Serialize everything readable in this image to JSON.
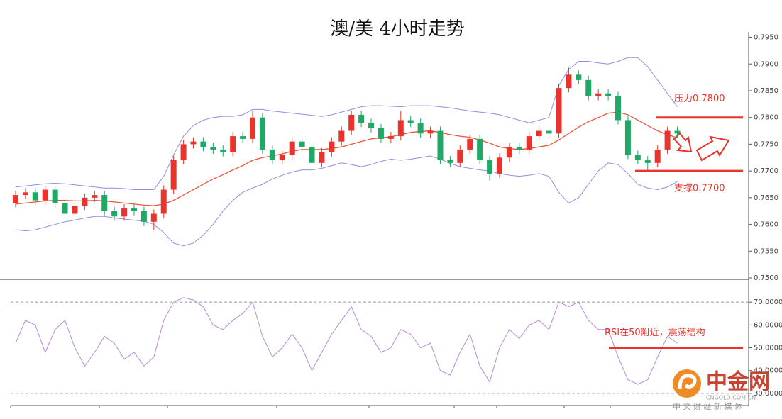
{
  "chart_data": [
    {
      "type": "candlestick",
      "title": "澳/美 4小时走势",
      "up_color": "#e8342c",
      "down_color": "#1fa866",
      "open": [
        0.764,
        0.7655,
        0.766,
        0.7645,
        0.7665,
        0.764,
        0.762,
        0.7635,
        0.765,
        0.7655,
        0.7625,
        0.7615,
        0.763,
        0.7625,
        0.7605,
        0.762,
        0.7665,
        0.772,
        0.775,
        0.7755,
        0.7745,
        0.774,
        0.7735,
        0.7765,
        0.776,
        0.78,
        0.774,
        0.772,
        0.773,
        0.7755,
        0.7745,
        0.7715,
        0.7735,
        0.7755,
        0.7775,
        0.7805,
        0.779,
        0.778,
        0.776,
        0.7765,
        0.7795,
        0.779,
        0.777,
        0.7775,
        0.772,
        0.7715,
        0.774,
        0.776,
        0.772,
        0.7695,
        0.7725,
        0.7745,
        0.774,
        0.7765,
        0.7775,
        0.777,
        0.7855,
        0.788,
        0.787,
        0.784,
        0.7845,
        0.784,
        0.7795,
        0.773,
        0.772,
        0.7715,
        0.774,
        0.7775
      ],
      "high": [
        0.7663,
        0.7668,
        0.7668,
        0.7673,
        0.7673,
        0.7648,
        0.7643,
        0.7658,
        0.7663,
        0.7663,
        0.7633,
        0.7638,
        0.7638,
        0.7633,
        0.7628,
        0.7673,
        0.7728,
        0.7758,
        0.7763,
        0.7763,
        0.7753,
        0.7748,
        0.7773,
        0.7773,
        0.7812,
        0.7808,
        0.7748,
        0.7738,
        0.7763,
        0.7763,
        0.7753,
        0.7743,
        0.7763,
        0.7783,
        0.7813,
        0.7813,
        0.7798,
        0.7788,
        0.7773,
        0.7812,
        0.7803,
        0.7798,
        0.7783,
        0.7783,
        0.7728,
        0.7748,
        0.7768,
        0.7768,
        0.7728,
        0.7733,
        0.7753,
        0.7753,
        0.7773,
        0.7783,
        0.7783,
        0.7863,
        0.7893,
        0.7888,
        0.7878,
        0.7853,
        0.7853,
        0.7848,
        0.7803,
        0.7738,
        0.7728,
        0.7748,
        0.7783,
        0.7783
      ],
      "low": [
        0.7632,
        0.7647,
        0.7637,
        0.7637,
        0.7632,
        0.7612,
        0.7612,
        0.7627,
        0.7642,
        0.7617,
        0.7607,
        0.7607,
        0.7617,
        0.7597,
        0.759,
        0.7612,
        0.7657,
        0.7712,
        0.7742,
        0.7737,
        0.7732,
        0.7727,
        0.7727,
        0.7752,
        0.7752,
        0.7732,
        0.7712,
        0.7712,
        0.7722,
        0.7737,
        0.7707,
        0.7707,
        0.7727,
        0.7747,
        0.7767,
        0.7782,
        0.7772,
        0.7752,
        0.7752,
        0.7757,
        0.7782,
        0.7762,
        0.7762,
        0.7712,
        0.7707,
        0.7707,
        0.7732,
        0.7712,
        0.7682,
        0.7687,
        0.7717,
        0.7732,
        0.7732,
        0.7757,
        0.7762,
        0.7762,
        0.7847,
        0.7862,
        0.7832,
        0.7832,
        0.7832,
        0.7787,
        0.7722,
        0.7712,
        0.77,
        0.7707,
        0.7732,
        0.7762
      ],
      "close": [
        0.7655,
        0.766,
        0.7645,
        0.7665,
        0.764,
        0.762,
        0.7635,
        0.765,
        0.7655,
        0.7625,
        0.7615,
        0.763,
        0.7625,
        0.7605,
        0.762,
        0.7665,
        0.772,
        0.775,
        0.7755,
        0.7745,
        0.774,
        0.7735,
        0.7765,
        0.776,
        0.78,
        0.774,
        0.772,
        0.773,
        0.7755,
        0.7745,
        0.7715,
        0.7735,
        0.7755,
        0.7775,
        0.7805,
        0.779,
        0.778,
        0.776,
        0.7765,
        0.7795,
        0.779,
        0.777,
        0.7775,
        0.772,
        0.7715,
        0.774,
        0.776,
        0.772,
        0.7695,
        0.7725,
        0.7745,
        0.774,
        0.7765,
        0.7775,
        0.777,
        0.7855,
        0.788,
        0.787,
        0.784,
        0.7845,
        0.784,
        0.7795,
        0.773,
        0.772,
        0.7715,
        0.774,
        0.7775,
        0.777
      ],
      "series": [
        {
          "color": "#8f8fe0",
          "values": [
            0.767,
            0.7672,
            0.7674,
            0.7676,
            0.7677,
            0.7676,
            0.7674,
            0.7672,
            0.767,
            0.7668,
            0.7668,
            0.7667,
            0.7665,
            0.7665,
            0.7665,
            0.769,
            0.773,
            0.7765,
            0.7785,
            0.7795,
            0.78,
            0.7802,
            0.7802,
            0.7805,
            0.7815,
            0.7815,
            0.7812,
            0.781,
            0.7808,
            0.7806,
            0.7804,
            0.7802,
            0.7805,
            0.781,
            0.7815,
            0.782,
            0.7822,
            0.7822,
            0.7821,
            0.782,
            0.7822,
            0.7822,
            0.7822,
            0.782,
            0.7818,
            0.7815,
            0.7812,
            0.781,
            0.7808,
            0.7805,
            0.78,
            0.7795,
            0.779,
            0.7795,
            0.78,
            0.786,
            0.789,
            0.7905,
            0.7905,
            0.7902,
            0.79,
            0.7905,
            0.7912,
            0.7912,
            0.7895,
            0.787,
            0.7845,
            0.782
          ]
        },
        {
          "color": "#e8553a",
          "values": [
            0.7638,
            0.764,
            0.7642,
            0.7644,
            0.7645,
            0.7645,
            0.7644,
            0.7644,
            0.7645,
            0.7644,
            0.7642,
            0.764,
            0.7638,
            0.7636,
            0.7635,
            0.7638,
            0.7645,
            0.7655,
            0.7665,
            0.7675,
            0.7685,
            0.7693,
            0.7702,
            0.771,
            0.772,
            0.7725,
            0.7728,
            0.7732,
            0.7737,
            0.774,
            0.774,
            0.774,
            0.7742,
            0.7745,
            0.775,
            0.7755,
            0.776,
            0.7762,
            0.7764,
            0.7768,
            0.7772,
            0.7774,
            0.7775,
            0.7772,
            0.7768,
            0.7765,
            0.7763,
            0.7758,
            0.7752,
            0.7745,
            0.7742,
            0.774,
            0.7742,
            0.7745,
            0.7748,
            0.7758,
            0.777,
            0.7782,
            0.7792,
            0.78,
            0.7808,
            0.781,
            0.7805,
            0.7795,
            0.7785,
            0.7775,
            0.7768,
            0.7762
          ]
        },
        {
          "color": "#8f8fe0",
          "values": [
            0.759,
            0.7588,
            0.759,
            0.7595,
            0.76,
            0.7605,
            0.7608,
            0.7612,
            0.7615,
            0.7615,
            0.7612,
            0.761,
            0.7608,
            0.7606,
            0.76,
            0.7585,
            0.7565,
            0.756,
            0.7565,
            0.758,
            0.76,
            0.7625,
            0.7645,
            0.766,
            0.7668,
            0.7675,
            0.7685,
            0.7692,
            0.7698,
            0.7702,
            0.7702,
            0.7705,
            0.771,
            0.7715,
            0.7712,
            0.7708,
            0.7712,
            0.7718,
            0.7722,
            0.772,
            0.7722,
            0.7725,
            0.7728,
            0.7722,
            0.7714,
            0.7708,
            0.7705,
            0.7702,
            0.77,
            0.7695,
            0.7692,
            0.769,
            0.7692,
            0.7695,
            0.769,
            0.766,
            0.764,
            0.765,
            0.7675,
            0.77,
            0.7715,
            0.7712,
            0.7695,
            0.7675,
            0.7668,
            0.7665,
            0.767,
            0.768
          ]
        }
      ],
      "ylim": [
        0.75,
        0.796
      ],
      "yticks": [
        {
          "value": 0.75,
          "label": "0.7500"
        },
        {
          "value": 0.755,
          "label": "0.7550"
        },
        {
          "value": 0.76,
          "label": "0.7600"
        },
        {
          "value": 0.765,
          "label": "0.7650"
        },
        {
          "value": 0.77,
          "label": "0.7700"
        },
        {
          "value": 0.775,
          "label": "0.7750"
        },
        {
          "value": 0.78,
          "label": "0.7800"
        },
        {
          "value": 0.785,
          "label": "0.7850"
        },
        {
          "value": 0.79,
          "label": "0.7900"
        },
        {
          "value": 0.795,
          "label": "0.7950"
        }
      ],
      "annotations": [
        {
          "text": "压力0.7800",
          "value": 0.78,
          "color": "#e8342c"
        },
        {
          "text": "支撑0.7700",
          "value": 0.77,
          "color": "#e8342c"
        }
      ]
    },
    {
      "type": "line",
      "series": [
        {
          "color": "#b98ad6",
          "values": [
            52,
            62,
            60,
            48,
            58,
            62,
            50,
            42,
            48,
            55,
            52,
            45,
            48,
            42,
            46,
            62,
            70,
            72,
            71,
            68,
            60,
            58,
            62,
            65,
            70,
            55,
            46,
            50,
            56,
            50,
            40,
            48,
            56,
            62,
            68,
            58,
            55,
            48,
            50,
            58,
            56,
            50,
            52,
            40,
            38,
            48,
            56,
            42,
            35,
            50,
            58,
            54,
            60,
            62,
            58,
            70,
            68,
            70,
            62,
            58,
            58,
            46,
            36,
            34,
            36,
            46,
            55,
            52
          ]
        }
      ],
      "ylim": [
        25,
        80
      ],
      "yticks": [
        {
          "value": 30,
          "label": "30.0000"
        },
        {
          "value": 40,
          "label": "40.0000"
        },
        {
          "value": 50,
          "label": "50.0000"
        },
        {
          "value": 60,
          "label": "60.0000"
        },
        {
          "value": 70,
          "label": "70.0000"
        }
      ],
      "levels": [
        70,
        30
      ],
      "annotations": [
        {
          "text": "RSI在50附近，震荡结构",
          "value": 50,
          "color": "#e8342c"
        }
      ]
    }
  ],
  "watermark": {
    "name": "中金网",
    "domain": "CNGOLD.COM.CN",
    "slogan": "中 文 财 经 新 媒 体"
  }
}
